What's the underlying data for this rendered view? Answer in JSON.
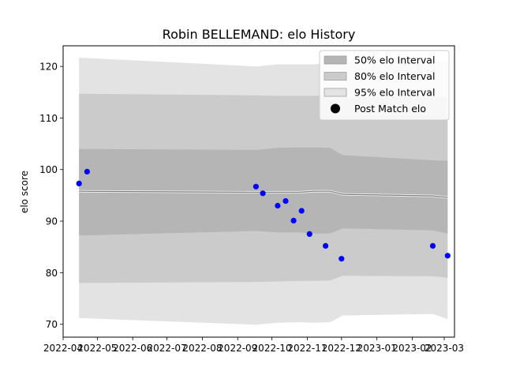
{
  "chart_data": {
    "type": "area",
    "title": "Robin BELLEMAND: elo History",
    "xlabel": "",
    "ylabel": "elo score",
    "xlim": [
      "2022-04-01",
      "2023-03-10"
    ],
    "ylim": [
      67.5,
      124
    ],
    "x_ticks": [
      "2022-04-01",
      "2022-05-01",
      "2022-06-01",
      "2022-07-01",
      "2022-08-01",
      "2022-09-01",
      "2022-10-01",
      "2022-11-01",
      "2022-12-01",
      "2023-01-01",
      "2023-02-01",
      "2023-03-01"
    ],
    "x_tick_labels": [
      "2022-04",
      "2022-05",
      "2022-06",
      "2022-07",
      "2022-08",
      "2022-09",
      "2022-10",
      "2022-11",
      "2022-12",
      "2023-01",
      "2023-02",
      "2023-03"
    ],
    "y_ticks": [
      70,
      80,
      90,
      100,
      110,
      120
    ],
    "grid": false,
    "legend_position": "top-right",
    "colors": {
      "band95": "#e3e3e3",
      "band80": "#cbcbcb",
      "band50": "#b5b5b5",
      "mean_line": "#808080",
      "points": "#0000ff"
    },
    "bands": {
      "dates": [
        "2022-04-15",
        "2022-09-17",
        "2022-10-06",
        "2022-10-25",
        "2022-11-07",
        "2022-11-21",
        "2022-12-02",
        "2023-02-19",
        "2023-03-04"
      ],
      "mean": [
        95.8,
        95.6,
        95.6,
        95.6,
        95.8,
        95.8,
        95.2,
        94.9,
        94.6
      ],
      "p50_low": [
        87.2,
        88.1,
        87.8,
        87.8,
        87.6,
        87.6,
        88.6,
        88.2,
        87.6
      ],
      "p50_high": [
        104.0,
        103.8,
        104.2,
        104.3,
        104.3,
        104.2,
        102.8,
        101.8,
        101.7
      ],
      "p80_low": [
        78.0,
        78.2,
        78.3,
        78.4,
        78.4,
        78.5,
        79.4,
        79.3,
        79.0
      ],
      "p80_high": [
        114.7,
        114.4,
        114.3,
        114.3,
        114.3,
        114.4,
        114.1,
        114.1,
        114.0
      ],
      "p95_low": [
        71.2,
        69.9,
        70.3,
        70.4,
        70.3,
        70.4,
        71.7,
        72.0,
        71.0
      ],
      "p95_high": [
        121.7,
        120.0,
        120.4,
        120.4,
        120.4,
        120.7,
        120.9,
        121.0,
        121.0
      ]
    },
    "series": [
      {
        "name": "Post Match elo",
        "type": "scatter",
        "dates": [
          "2022-04-15",
          "2022-04-22",
          "2022-09-17",
          "2022-09-23",
          "2022-10-06",
          "2022-10-13",
          "2022-10-20",
          "2022-10-27",
          "2022-11-03",
          "2022-11-17",
          "2022-12-01",
          "2023-02-19",
          "2023-03-04"
        ],
        "values": [
          97.3,
          99.6,
          96.7,
          95.4,
          93.0,
          93.9,
          90.1,
          92.0,
          87.5,
          85.2,
          82.7,
          85.2,
          83.3
        ]
      }
    ],
    "legend": [
      {
        "label": "50% elo Interval",
        "kind": "band",
        "color": "#b5b5b5"
      },
      {
        "label": "80% elo Interval",
        "kind": "band",
        "color": "#cbcbcb"
      },
      {
        "label": "95% elo Interval",
        "kind": "band",
        "color": "#e3e3e3"
      },
      {
        "label": "Post Match elo",
        "kind": "marker",
        "color": "#000000"
      }
    ]
  }
}
